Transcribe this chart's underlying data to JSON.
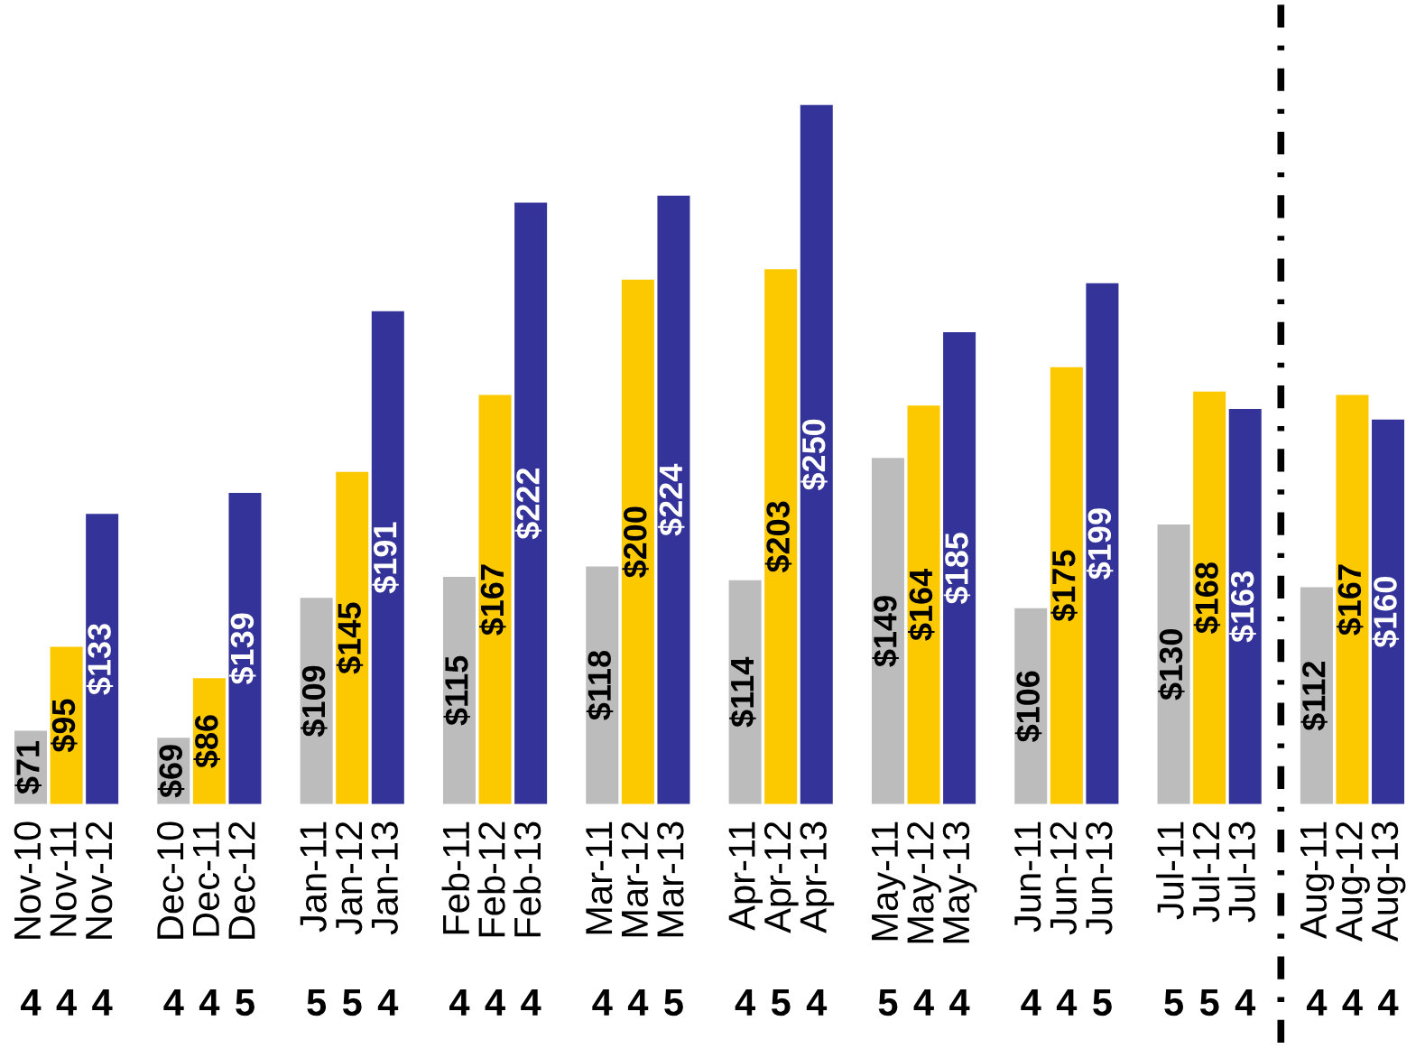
{
  "chart_data": {
    "type": "bar",
    "categories": [
      "Nov-10",
      "Nov-11",
      "Nov-12",
      null,
      "Dec-10",
      "Dec-11",
      "Dec-12",
      null,
      "Jan-11",
      "Jan-12",
      "Jan-13",
      null,
      "Feb-11",
      "Feb-12",
      "Feb-13",
      null,
      "Mar-11",
      "Mar-12",
      "Mar-13",
      null,
      "Apr-11",
      "Apr-12",
      "Apr-13",
      null,
      "May-11",
      "May-12",
      "May-13",
      null,
      "Jun-11",
      "Jun-12",
      "Jun-13",
      null,
      "Jul-11",
      "Jul-12",
      "Jul-13",
      null,
      "Aug-11",
      "Aug-12",
      "Aug-13"
    ],
    "values": [
      71,
      95,
      133,
      null,
      69,
      86,
      139,
      null,
      109,
      145,
      191,
      null,
      115,
      167,
      222,
      null,
      118,
      200,
      224,
      null,
      114,
      203,
      250,
      null,
      149,
      164,
      185,
      null,
      106,
      175,
      199,
      null,
      130,
      168,
      163,
      null,
      112,
      167,
      160
    ],
    "value_labels": [
      "$71",
      "$95",
      "$133",
      null,
      "$69",
      "$86",
      "$139",
      null,
      "$109",
      "$145",
      "$191",
      null,
      "$115",
      "$167",
      "$222",
      null,
      "$118",
      "$200",
      "$224",
      null,
      "$114",
      "$203",
      "$250",
      null,
      "$149",
      "$164",
      "$185",
      null,
      "$106",
      "$175",
      "$199",
      null,
      "$130",
      "$168",
      "$163",
      null,
      "$112",
      "$167",
      "$160"
    ],
    "colors": [
      "#bcbcbc",
      "#fcc800",
      "#333399",
      null,
      "#bcbcbc",
      "#fcc800",
      "#333399",
      null,
      "#bcbcbc",
      "#fcc800",
      "#333399",
      null,
      "#bcbcbc",
      "#fcc800",
      "#333399",
      null,
      "#bcbcbc",
      "#fcc800",
      "#333399",
      null,
      "#bcbcbc",
      "#fcc800",
      "#333399",
      null,
      "#bcbcbc",
      "#fcc800",
      "#333399",
      null,
      "#bcbcbc",
      "#fcc800",
      "#333399",
      null,
      "#bcbcbc",
      "#fcc800",
      "#333399",
      null,
      "#bcbcbc",
      "#fcc800",
      "#333399"
    ],
    "ylim": [
      50,
      280
    ],
    "tick_labels": "x",
    "annotations": [
      "4",
      "4",
      "4",
      "4",
      "4",
      "5",
      "5",
      "5",
      "4",
      "4",
      "4",
      "4",
      "4",
      "4",
      "5",
      "4",
      "5",
      "4",
      "5",
      "4",
      "4",
      "4",
      "4",
      "5",
      "5",
      "5",
      "4",
      "4",
      "4",
      "4"
    ]
  }
}
